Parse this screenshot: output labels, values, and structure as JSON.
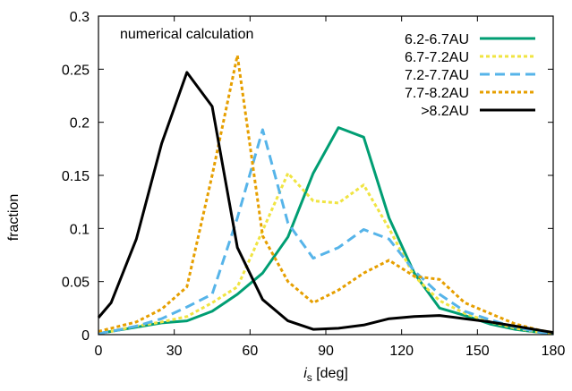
{
  "chart_data": {
    "type": "line",
    "title": "",
    "annotation": "numerical calculation",
    "xlabel_italic": "i",
    "xlabel_sub": "s",
    "xlabel_unit": " [deg]",
    "ylabel": "fraction",
    "xlim": [
      0,
      180
    ],
    "ylim": [
      0,
      0.3
    ],
    "xticks": [
      0,
      30,
      60,
      90,
      120,
      150,
      180
    ],
    "yticks": [
      0,
      0.05,
      0.1,
      0.15,
      0.2,
      0.25,
      0.3
    ],
    "xtick_labels": [
      "0",
      "30",
      "60",
      "90",
      "120",
      "150",
      "180"
    ],
    "ytick_labels": [
      "0",
      "0.05",
      "0.1",
      "0.15",
      "0.2",
      "0.25",
      "0.3"
    ],
    "grid": false,
    "legend_position": "top-right",
    "series": [
      {
        "name": "6.2-6.7AU",
        "color": "#009e73",
        "style": "solid",
        "x": [
          0,
          5,
          15,
          25,
          35,
          45,
          55,
          65,
          75,
          85,
          95,
          105,
          115,
          125,
          135,
          145,
          155,
          165,
          175,
          180
        ],
        "y": [
          0.001,
          0.003,
          0.007,
          0.011,
          0.013,
          0.022,
          0.038,
          0.058,
          0.092,
          0.152,
          0.195,
          0.186,
          0.11,
          0.058,
          0.025,
          0.018,
          0.01,
          0.005,
          0.002,
          0.001
        ]
      },
      {
        "name": "6.7-7.2AU",
        "color": "#f0e442",
        "style": "dotted",
        "x": [
          0,
          5,
          15,
          25,
          35,
          45,
          55,
          65,
          75,
          85,
          95,
          105,
          115,
          125,
          135,
          145,
          155,
          165,
          175,
          180
        ],
        "y": [
          0.001,
          0.003,
          0.008,
          0.012,
          0.017,
          0.03,
          0.045,
          0.098,
          0.152,
          0.126,
          0.124,
          0.141,
          0.1,
          0.055,
          0.032,
          0.02,
          0.012,
          0.006,
          0.002,
          0.001
        ]
      },
      {
        "name": "7.2-7.7AU",
        "color": "#56b4e9",
        "style": "dashed",
        "x": [
          0,
          5,
          15,
          25,
          35,
          45,
          55,
          65,
          75,
          85,
          95,
          105,
          115,
          125,
          135,
          145,
          155,
          165,
          175,
          180
        ],
        "y": [
          0.001,
          0.003,
          0.008,
          0.015,
          0.026,
          0.038,
          0.11,
          0.193,
          0.105,
          0.072,
          0.082,
          0.099,
          0.09,
          0.06,
          0.038,
          0.022,
          0.014,
          0.007,
          0.002,
          0.001
        ]
      },
      {
        "name": "7.7-8.2AU",
        "color": "#e69f00",
        "style": "dotted",
        "x": [
          0,
          5,
          15,
          25,
          35,
          45,
          55,
          65,
          75,
          85,
          95,
          105,
          115,
          125,
          135,
          145,
          155,
          165,
          175,
          180
        ],
        "y": [
          0.003,
          0.006,
          0.012,
          0.024,
          0.045,
          0.15,
          0.263,
          0.093,
          0.05,
          0.03,
          0.042,
          0.058,
          0.07,
          0.055,
          0.052,
          0.03,
          0.02,
          0.01,
          0.004,
          0.002
        ]
      },
      {
        "name": ">8.2AU",
        "color": "#000000",
        "style": "solid",
        "x": [
          0,
          5,
          15,
          25,
          35,
          45,
          55,
          65,
          75,
          85,
          95,
          105,
          115,
          125,
          135,
          145,
          155,
          165,
          175,
          180
        ],
        "y": [
          0.016,
          0.03,
          0.09,
          0.18,
          0.247,
          0.215,
          0.082,
          0.033,
          0.013,
          0.005,
          0.006,
          0.009,
          0.015,
          0.017,
          0.018,
          0.015,
          0.012,
          0.008,
          0.004,
          0.002
        ]
      }
    ]
  }
}
